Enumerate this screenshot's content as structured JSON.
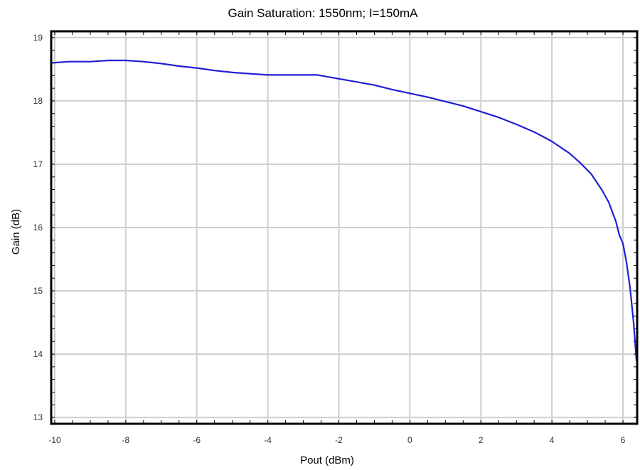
{
  "chart_data": {
    "type": "line",
    "title": "Gain Saturation: 1550nm; I=150mA",
    "xlabel": "Pout (dBm)",
    "ylabel": "Gain (dB)",
    "xlim": [
      -10.1,
      6.4
    ],
    "ylim": [
      12.9,
      19.1
    ],
    "xticks": [
      -10,
      -8,
      -6,
      -4,
      -2,
      0,
      2,
      4,
      6
    ],
    "yticks": [
      13,
      14,
      15,
      16,
      17,
      18,
      19
    ],
    "grid": true,
    "legend": "none",
    "colors": {
      "series": "#1f1fd6",
      "grid": "#cfcfcf",
      "frame": "#000000"
    },
    "series": [
      {
        "x": [
          -10.1,
          -9.6,
          -9.0,
          -8.5,
          -8.0,
          -7.5,
          -7.0,
          -6.5,
          -6.0,
          -5.5,
          -5.0,
          -4.5,
          -4.0,
          -3.5,
          -3.0,
          -2.6,
          -2.0,
          -1.5,
          -1.0,
          -0.5,
          0.0,
          0.5,
          1.0,
          1.5,
          2.0,
          2.5,
          3.0,
          3.5,
          4.0,
          4.5,
          4.8,
          5.1,
          5.4,
          5.6,
          5.8,
          5.9,
          6.0,
          6.05,
          6.1,
          6.2,
          6.3,
          6.38
        ],
        "y": [
          18.6,
          18.62,
          18.62,
          18.64,
          18.64,
          18.62,
          18.59,
          18.55,
          18.52,
          18.48,
          18.45,
          18.43,
          18.41,
          18.41,
          18.41,
          18.41,
          18.35,
          18.3,
          18.25,
          18.18,
          18.12,
          18.06,
          17.99,
          17.92,
          17.83,
          17.74,
          17.63,
          17.51,
          17.36,
          17.17,
          17.02,
          16.85,
          16.6,
          16.4,
          16.1,
          15.88,
          15.75,
          15.6,
          15.45,
          15.05,
          14.5,
          13.9
        ]
      }
    ]
  }
}
